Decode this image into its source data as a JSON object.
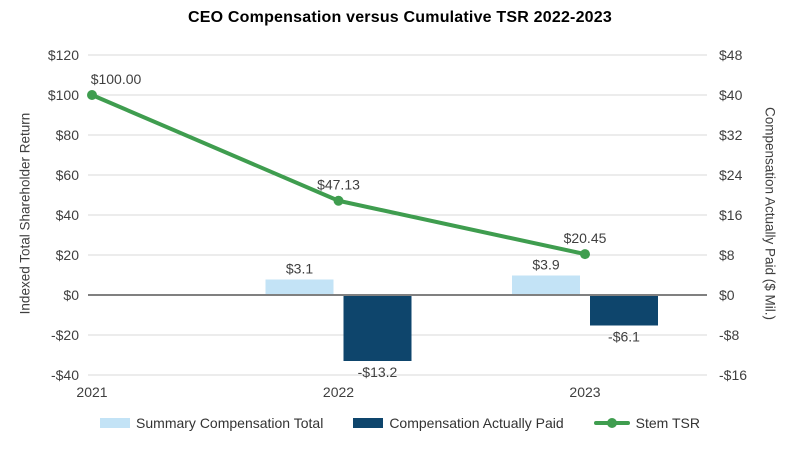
{
  "chart_data": {
    "type": "combo-bar-line",
    "title": "CEO Compensation versus Cumulative TSR 2022-2023",
    "categories": [
      "2021",
      "2022",
      "2023"
    ],
    "left_axis": {
      "label": "Indexed Total Shareholder Return",
      "min": -40,
      "max": 120,
      "step": 20,
      "ticks": [
        {
          "label": "$120",
          "value": 120
        },
        {
          "label": "$100",
          "value": 100
        },
        {
          "label": "$80",
          "value": 80
        },
        {
          "label": "$60",
          "value": 60
        },
        {
          "label": "$40",
          "value": 40
        },
        {
          "label": "$20",
          "value": 20
        },
        {
          "label": "$0",
          "value": 0
        },
        {
          "label": "-$20",
          "value": -20
        },
        {
          "label": "-$40",
          "value": -40
        }
      ]
    },
    "right_axis": {
      "label": "Compensation Actually Paid ($ Mil.)",
      "min": -16,
      "max": 48,
      "step": 8,
      "ticks": [
        {
          "label": "$48",
          "value": 48
        },
        {
          "label": "$40",
          "value": 40
        },
        {
          "label": "$32",
          "value": 32
        },
        {
          "label": "$24",
          "value": 24
        },
        {
          "label": "$16",
          "value": 16
        },
        {
          "label": "$8",
          "value": 8
        },
        {
          "label": "$0",
          "value": 0
        },
        {
          "label": "-$8",
          "value": -8
        },
        {
          "label": "-$16",
          "value": -16
        }
      ]
    },
    "series": [
      {
        "name": "Summary Compensation Total",
        "type": "bar",
        "axis": "right",
        "color": "#C3E3F6",
        "values": [
          null,
          3.1,
          3.9
        ],
        "data_labels": [
          null,
          "$3.1",
          "$3.9"
        ]
      },
      {
        "name": "Compensation Actually Paid",
        "type": "bar",
        "axis": "right",
        "color": "#0E456C",
        "values": [
          null,
          -13.2,
          -6.1
        ],
        "data_labels": [
          null,
          "-$13.2",
          "-$6.1"
        ]
      },
      {
        "name": "Stem TSR",
        "type": "line",
        "axis": "left",
        "color": "#3F9D4F",
        "values": [
          100.0,
          47.13,
          20.45
        ],
        "data_labels": [
          "$100.00",
          "$47.13",
          "$20.45"
        ]
      }
    ],
    "grid": true,
    "legend_position": "bottom",
    "colors": {
      "grid": "#D9D9D9",
      "zero_line": "#808080",
      "text": "#3F3F3F",
      "title": "#000000",
      "background": "#FFFFFF"
    }
  }
}
